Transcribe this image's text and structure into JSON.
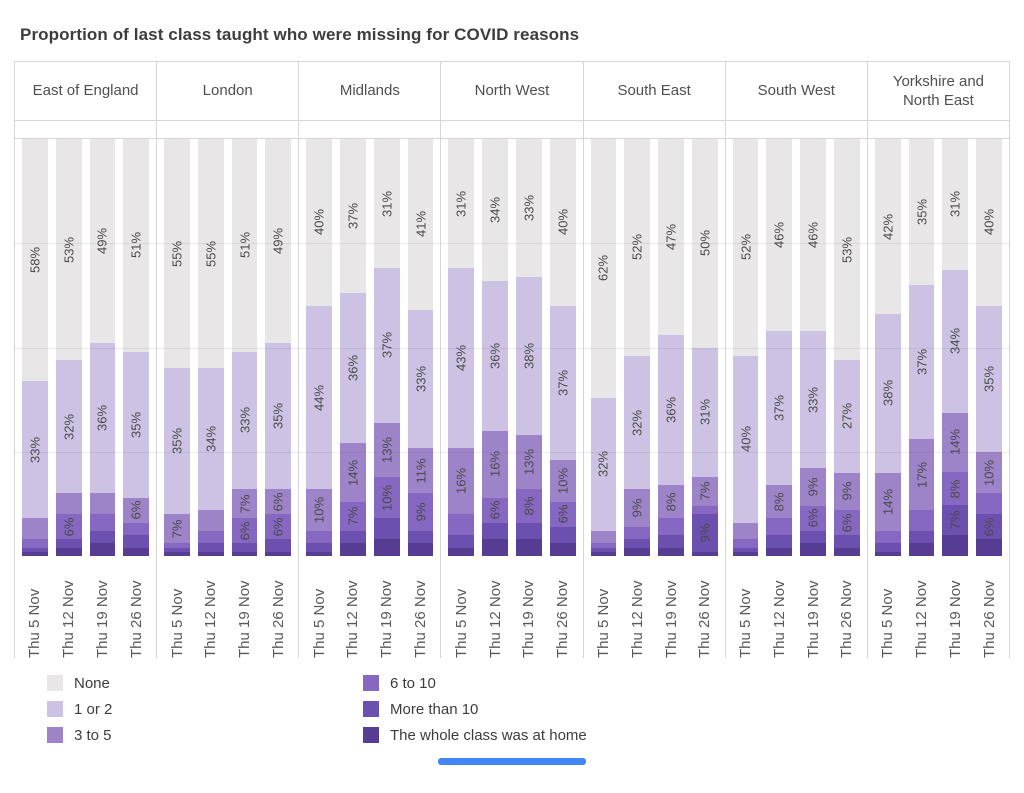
{
  "title": "Proportion of last class taught who were missing for COVID reasons",
  "accent_color": "#4285f4",
  "chart_data": {
    "type": "bar",
    "stacking": "percent",
    "orientation": "vertical",
    "label_min_pct": 6,
    "dates": [
      "Thu 5 Nov",
      "Thu 12 Nov",
      "Thu 19 Nov",
      "Thu 26 Nov"
    ],
    "series_labels": [
      "None",
      "1 or 2",
      "3 to 5",
      "6 to 10",
      "More than 10",
      "The whole class was at home"
    ],
    "series_colors": [
      "#e8e6e7",
      "#cdc2e4",
      "#9d84c9",
      "#8667c2",
      "#6c50b0",
      "#563c92"
    ],
    "legend_position": "bottom",
    "regions": [
      {
        "name": "East of England",
        "values": [
          [
            58,
            33,
            5,
            2,
            1,
            1
          ],
          [
            53,
            32,
            5,
            6,
            2,
            2
          ],
          [
            49,
            36,
            5,
            4,
            3,
            3
          ],
          [
            51,
            35,
            6,
            3,
            3,
            2
          ]
        ]
      },
      {
        "name": "London",
        "values": [
          [
            55,
            35,
            7,
            1,
            1,
            1
          ],
          [
            55,
            34,
            5,
            3,
            2,
            1
          ],
          [
            51,
            33,
            7,
            6,
            2,
            1
          ],
          [
            49,
            35,
            6,
            6,
            3,
            1
          ]
        ]
      },
      {
        "name": "Midlands",
        "values": [
          [
            40,
            44,
            10,
            3,
            2,
            1
          ],
          [
            37,
            36,
            14,
            7,
            3,
            3
          ],
          [
            31,
            37,
            13,
            10,
            5,
            4
          ],
          [
            41,
            33,
            11,
            9,
            3,
            3
          ]
        ]
      },
      {
        "name": "North West",
        "values": [
          [
            31,
            43,
            16,
            5,
            3,
            2
          ],
          [
            34,
            36,
            16,
            6,
            4,
            4
          ],
          [
            33,
            38,
            13,
            8,
            4,
            4
          ],
          [
            40,
            37,
            10,
            6,
            4,
            3
          ]
        ]
      },
      {
        "name": "South East",
        "values": [
          [
            62,
            32,
            3,
            1,
            1,
            1
          ],
          [
            52,
            32,
            9,
            3,
            2,
            2
          ],
          [
            47,
            36,
            8,
            4,
            3,
            2
          ],
          [
            50,
            31,
            7,
            2,
            9,
            1
          ]
        ]
      },
      {
        "name": "South West",
        "values": [
          [
            52,
            40,
            4,
            2,
            1,
            1
          ],
          [
            46,
            37,
            8,
            4,
            3,
            2
          ],
          [
            46,
            33,
            9,
            6,
            3,
            3
          ],
          [
            53,
            27,
            9,
            6,
            3,
            2
          ]
        ]
      },
      {
        "name": "Yorkshire and North East",
        "values": [
          [
            42,
            38,
            14,
            3,
            2,
            1
          ],
          [
            35,
            37,
            17,
            5,
            3,
            3
          ],
          [
            31,
            34,
            14,
            8,
            7,
            5
          ],
          [
            40,
            35,
            10,
            5,
            6,
            4
          ]
        ]
      }
    ]
  }
}
